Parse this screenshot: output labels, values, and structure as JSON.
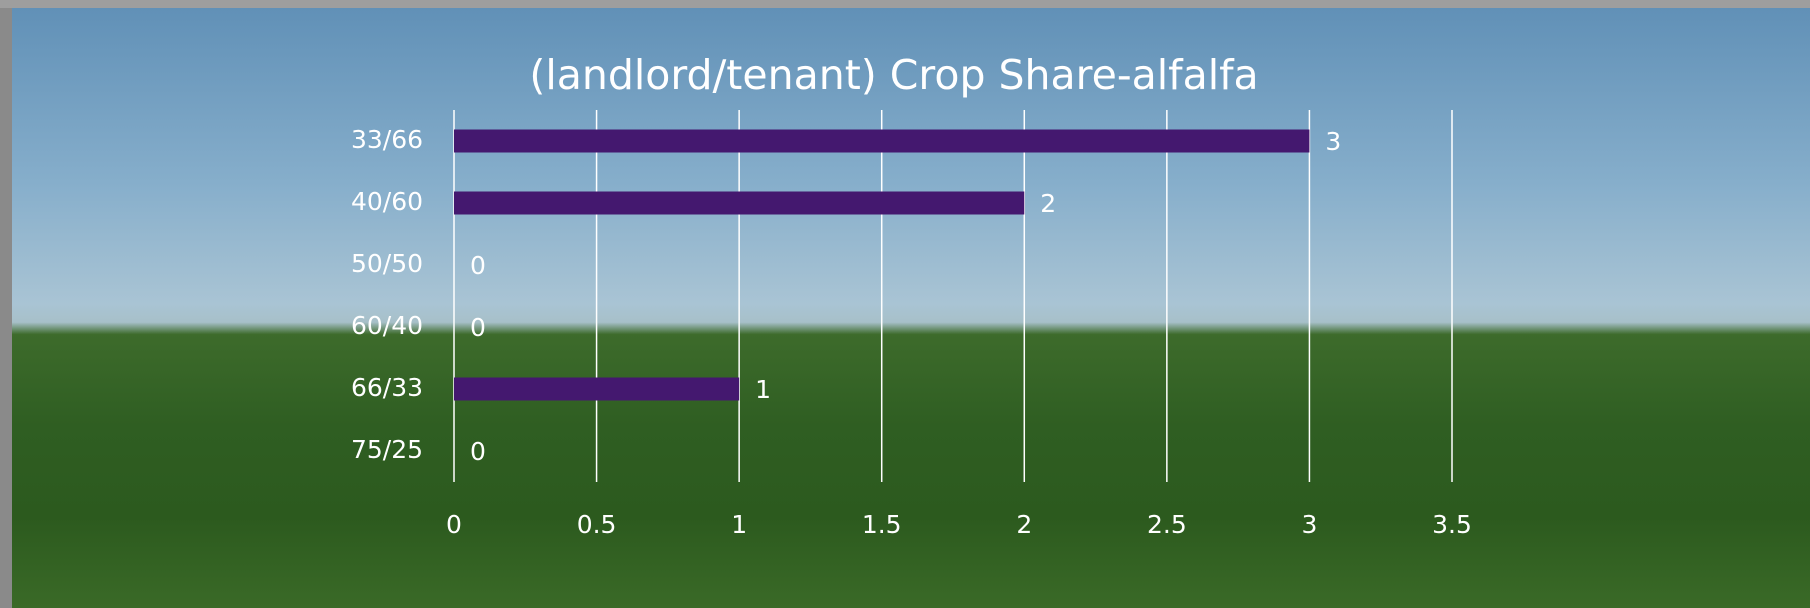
{
  "chart_data": {
    "type": "bar",
    "orientation": "horizontal",
    "title": "(landlord/tenant) Crop Share-alfalfa",
    "categories": [
      "33/66",
      "40/60",
      "50/50",
      "60/40",
      "66/33",
      "75/25"
    ],
    "values": [
      3,
      2,
      0,
      0,
      1,
      0
    ],
    "color": "#44186f",
    "xlim": [
      0,
      3.5
    ],
    "xticks": [
      0,
      0.5,
      1,
      1.5,
      2,
      2.5,
      3,
      3.5
    ],
    "grid": true,
    "data_labels": true
  }
}
